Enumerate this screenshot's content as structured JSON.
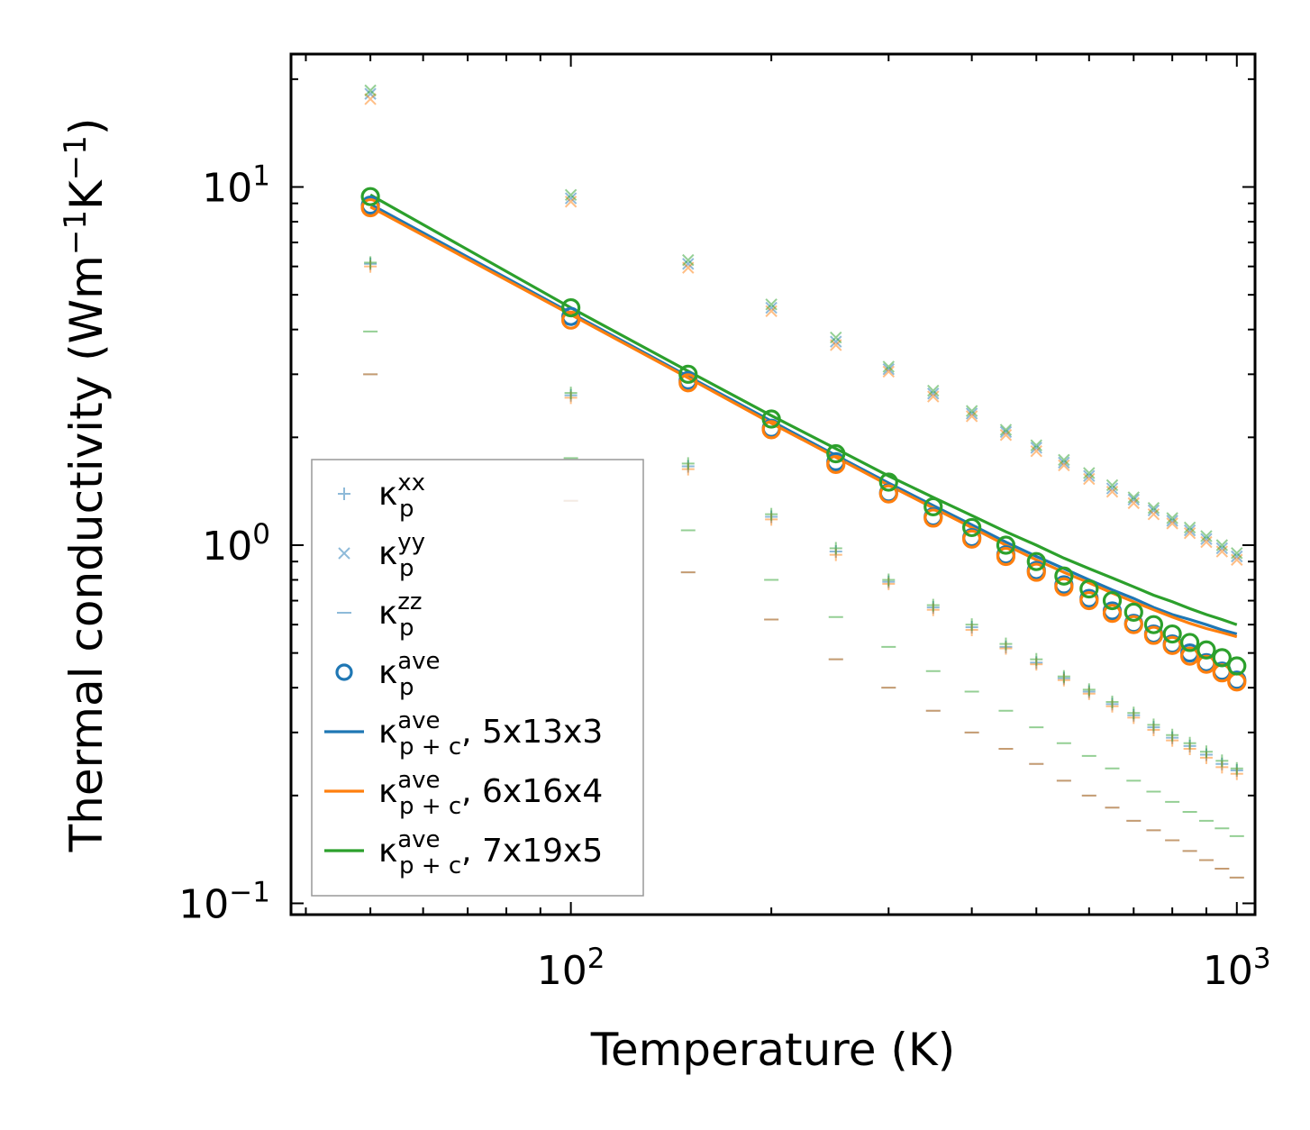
{
  "chart_data": {
    "type": "scatter",
    "xlabel": "Temperature (K)",
    "ylabel": "Thermal conductivity (Wm",
    "ylabel_sup1": "−1",
    "ylabel_mid": "K",
    "ylabel_sup2": "−1",
    "ylabel_end": ")",
    "xscale": "log",
    "yscale": "log",
    "xlim": [
      38,
      1065
    ],
    "ylim": [
      0.093,
      23.5
    ],
    "x_ticks": [
      {
        "base": "10",
        "exp": "2",
        "value": 100
      },
      {
        "base": "10",
        "exp": "3",
        "value": 1000
      }
    ],
    "y_ticks": [
      {
        "base": "10",
        "exp": "−1",
        "value": 0.1
      },
      {
        "base": "10",
        "exp": "0",
        "value": 1
      },
      {
        "base": "10",
        "exp": "1",
        "value": 10
      }
    ],
    "legend_position": "lower-left",
    "colors": {
      "5x13x3": "#1f77b4",
      "6x16x4": "#ff7f0e",
      "7x19x5": "#2ca02c"
    },
    "temperatures": [
      50,
      100,
      150,
      200,
      250,
      300,
      350,
      400,
      450,
      500,
      550,
      600,
      650,
      700,
      750,
      800,
      850,
      900,
      950,
      1000
    ],
    "series": [
      {
        "name": "5x13x3",
        "color": "#1f77b4",
        "kxx": [
          6.1,
          2.62,
          1.66,
          1.2,
          0.96,
          0.79,
          0.67,
          0.59,
          0.52,
          0.47,
          0.425,
          0.39,
          0.36,
          0.335,
          0.31,
          0.29,
          0.275,
          0.26,
          0.245,
          0.235
        ],
        "kyy": [
          18.2,
          9.3,
          6.1,
          4.6,
          3.7,
          3.1,
          2.65,
          2.33,
          2.07,
          1.87,
          1.7,
          1.56,
          1.44,
          1.34,
          1.25,
          1.17,
          1.1,
          1.04,
          0.98,
          0.93
        ],
        "kzz": [
          3.0,
          1.33,
          0.84,
          0.62,
          0.48,
          0.4,
          0.345,
          0.3,
          0.27,
          0.245,
          0.22,
          0.2,
          0.185,
          0.17,
          0.16,
          0.15,
          0.14,
          0.132,
          0.125,
          0.118
        ],
        "kave": [
          8.9,
          4.35,
          2.88,
          2.12,
          1.71,
          1.4,
          1.2,
          1.05,
          0.94,
          0.85,
          0.775,
          0.71,
          0.655,
          0.605,
          0.565,
          0.53,
          0.5,
          0.47,
          0.445,
          0.42
        ],
        "kpc": [
          8.95,
          4.45,
          2.96,
          2.22,
          1.78,
          1.49,
          1.29,
          1.14,
          1.02,
          0.93,
          0.86,
          0.8,
          0.75,
          0.71,
          0.67,
          0.64,
          0.62,
          0.6,
          0.58,
          0.565
        ]
      },
      {
        "name": "6x16x4",
        "color": "#ff7f0e",
        "kxx": [
          6.0,
          2.58,
          1.63,
          1.18,
          0.94,
          0.78,
          0.66,
          0.58,
          0.515,
          0.465,
          0.42,
          0.385,
          0.355,
          0.33,
          0.305,
          0.285,
          0.27,
          0.255,
          0.24,
          0.23
        ],
        "kyy": [
          17.6,
          9.1,
          5.95,
          4.5,
          3.62,
          3.05,
          2.6,
          2.29,
          2.03,
          1.83,
          1.67,
          1.53,
          1.41,
          1.31,
          1.22,
          1.15,
          1.08,
          1.02,
          0.96,
          0.91
        ],
        "kzz": [
          3.0,
          1.33,
          0.84,
          0.62,
          0.48,
          0.4,
          0.345,
          0.3,
          0.27,
          0.245,
          0.22,
          0.2,
          0.185,
          0.17,
          0.16,
          0.15,
          0.14,
          0.132,
          0.125,
          0.118
        ],
        "kave": [
          8.75,
          4.25,
          2.84,
          2.1,
          1.68,
          1.39,
          1.19,
          1.04,
          0.93,
          0.84,
          0.765,
          0.7,
          0.645,
          0.6,
          0.56,
          0.525,
          0.49,
          0.465,
          0.44,
          0.415
        ],
        "kpc": [
          8.8,
          4.4,
          2.93,
          2.19,
          1.76,
          1.47,
          1.27,
          1.12,
          1.0,
          0.91,
          0.84,
          0.785,
          0.735,
          0.695,
          0.66,
          0.63,
          0.605,
          0.585,
          0.57,
          0.555
        ]
      },
      {
        "name": "7x19x5",
        "color": "#2ca02c",
        "kxx": [
          6.15,
          2.66,
          1.69,
          1.22,
          0.98,
          0.8,
          0.68,
          0.6,
          0.53,
          0.48,
          0.43,
          0.395,
          0.365,
          0.34,
          0.315,
          0.295,
          0.28,
          0.265,
          0.25,
          0.238
        ],
        "kyy": [
          18.6,
          9.5,
          6.25,
          4.7,
          3.8,
          3.15,
          2.7,
          2.37,
          2.1,
          1.9,
          1.73,
          1.59,
          1.47,
          1.36,
          1.27,
          1.19,
          1.12,
          1.06,
          1.0,
          0.95
        ],
        "kzz": [
          3.95,
          1.75,
          1.1,
          0.8,
          0.63,
          0.52,
          0.445,
          0.39,
          0.345,
          0.31,
          0.28,
          0.258,
          0.238,
          0.22,
          0.205,
          0.192,
          0.18,
          0.17,
          0.162,
          0.154
        ],
        "kave": [
          9.4,
          4.6,
          3.0,
          2.25,
          1.8,
          1.5,
          1.28,
          1.12,
          1.0,
          0.9,
          0.82,
          0.755,
          0.7,
          0.65,
          0.6,
          0.565,
          0.535,
          0.51,
          0.485,
          0.46
        ],
        "kpc": [
          9.5,
          4.6,
          3.06,
          2.3,
          1.86,
          1.56,
          1.36,
          1.21,
          1.09,
          1.0,
          0.92,
          0.86,
          0.81,
          0.765,
          0.725,
          0.695,
          0.665,
          0.64,
          0.62,
          0.6
        ]
      }
    ],
    "legend": [
      {
        "marker": "plus",
        "color": "#1f77b4",
        "sym": "κ",
        "sub": "p",
        "sup": "xx",
        "tail": ""
      },
      {
        "marker": "x",
        "color": "#1f77b4",
        "sym": "κ",
        "sub": "p",
        "sup": "yy",
        "tail": ""
      },
      {
        "marker": "dash",
        "color": "#1f77b4",
        "sym": "κ",
        "sub": "p",
        "sup": "zz",
        "tail": ""
      },
      {
        "marker": "circle",
        "color": "#1f77b4",
        "sym": "κ",
        "sub": "p",
        "sup": "ave",
        "tail": ""
      },
      {
        "marker": "line",
        "color": "#1f77b4",
        "sym": "κ",
        "sub": "p + c",
        "sup": "ave",
        "tail": ", 5x13x3"
      },
      {
        "marker": "line",
        "color": "#ff7f0e",
        "sym": "κ",
        "sub": "p + c",
        "sup": "ave",
        "tail": ", 6x16x4"
      },
      {
        "marker": "line",
        "color": "#2ca02c",
        "sym": "κ",
        "sub": "p + c",
        "sup": "ave",
        "tail": ", 7x19x5"
      }
    ]
  }
}
